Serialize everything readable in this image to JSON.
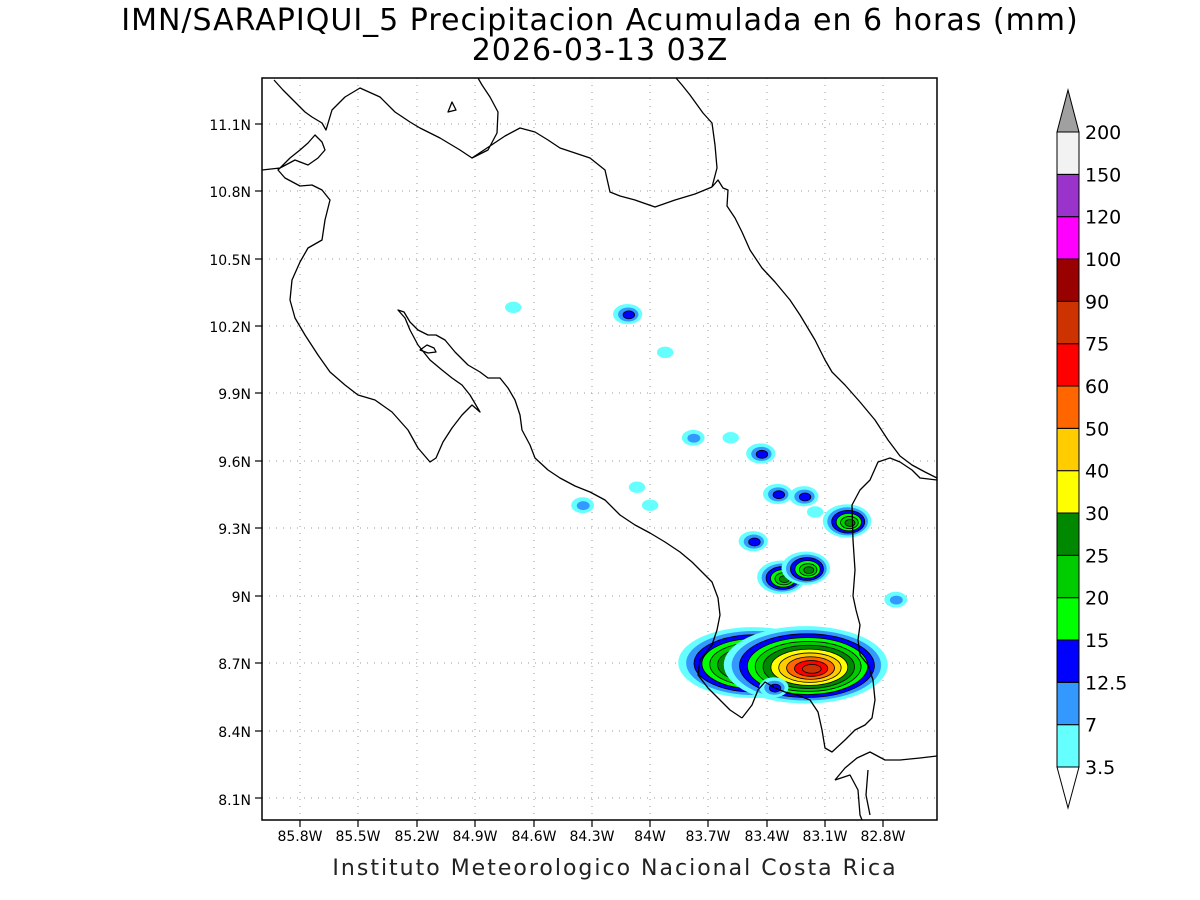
{
  "title": {
    "line1": "IMN/SARAPIQUI_5 Precipitacion Acumulada en 6 horas (mm)",
    "line2": "2026-03-13 03Z"
  },
  "footer": "Instituto Meteorologico Nacional Costa Rica",
  "map": {
    "lon_range": [
      -86.0,
      -82.4
    ],
    "lat_range": [
      8.0,
      11.3
    ],
    "x_ticks": [
      "85.8W",
      "85.5W",
      "85.2W",
      "84.9W",
      "84.6W",
      "84.3W",
      "84W",
      "83.7W",
      "83.4W",
      "83.1W",
      "82.8W"
    ],
    "y_ticks": [
      "8.1N",
      "8.4N",
      "8.7N",
      "9N",
      "9.3N",
      "9.6N",
      "9.9N",
      "10.2N",
      "10.5N",
      "10.8N",
      "11.1N"
    ]
  },
  "colorbar": {
    "labels": [
      "3.5",
      "7",
      "12.5",
      "15",
      "20",
      "25",
      "30",
      "40",
      "50",
      "60",
      "75",
      "90",
      "100",
      "120",
      "150",
      "200"
    ],
    "colors": [
      "#66ffff",
      "#3399ff",
      "#0000ff",
      "#00ff00",
      "#00cc00",
      "#008800",
      "#ffff00",
      "#ffcc00",
      "#ff6600",
      "#ff0000",
      "#cc3300",
      "#990000",
      "#ff00ff",
      "#9933cc",
      "#f2f2f2"
    ],
    "over_color": "#a0a0a0",
    "under_color": "#ffffff"
  },
  "cells": [
    {
      "lon": -84.66,
      "lat": 10.28,
      "amount": 3.5
    },
    {
      "lon": -84.05,
      "lat": 10.25,
      "amount": 12.5
    },
    {
      "lon": -83.85,
      "lat": 10.08,
      "amount": 3.5
    },
    {
      "lon": -84.29,
      "lat": 9.4,
      "amount": 7
    },
    {
      "lon": -84.0,
      "lat": 9.48,
      "amount": 3.5
    },
    {
      "lon": -83.93,
      "lat": 9.4,
      "amount": 3.5
    },
    {
      "lon": -83.7,
      "lat": 9.7,
      "amount": 7
    },
    {
      "lon": -83.5,
      "lat": 9.7,
      "amount": 3.5
    },
    {
      "lon": -83.34,
      "lat": 9.63,
      "amount": 12.5
    },
    {
      "lon": -83.25,
      "lat": 9.45,
      "amount": 12.5
    },
    {
      "lon": -83.11,
      "lat": 9.44,
      "amount": 12.5
    },
    {
      "lon": -83.05,
      "lat": 9.37,
      "amount": 3.5
    },
    {
      "lon": -82.88,
      "lat": 9.33,
      "amount": 25
    },
    {
      "lon": -83.38,
      "lat": 9.24,
      "amount": 12.5
    },
    {
      "lon": -83.23,
      "lat": 9.08,
      "amount": 25
    },
    {
      "lon": -83.1,
      "lat": 9.12,
      "amount": 25
    },
    {
      "lon": -82.62,
      "lat": 8.98,
      "amount": 7
    },
    {
      "lon": -83.38,
      "lat": 8.7,
      "amount": 60
    },
    {
      "lon": -83.1,
      "lat": 8.69,
      "amount": 75
    },
    {
      "lon": -83.27,
      "lat": 8.59,
      "amount": 12.5
    }
  ]
}
